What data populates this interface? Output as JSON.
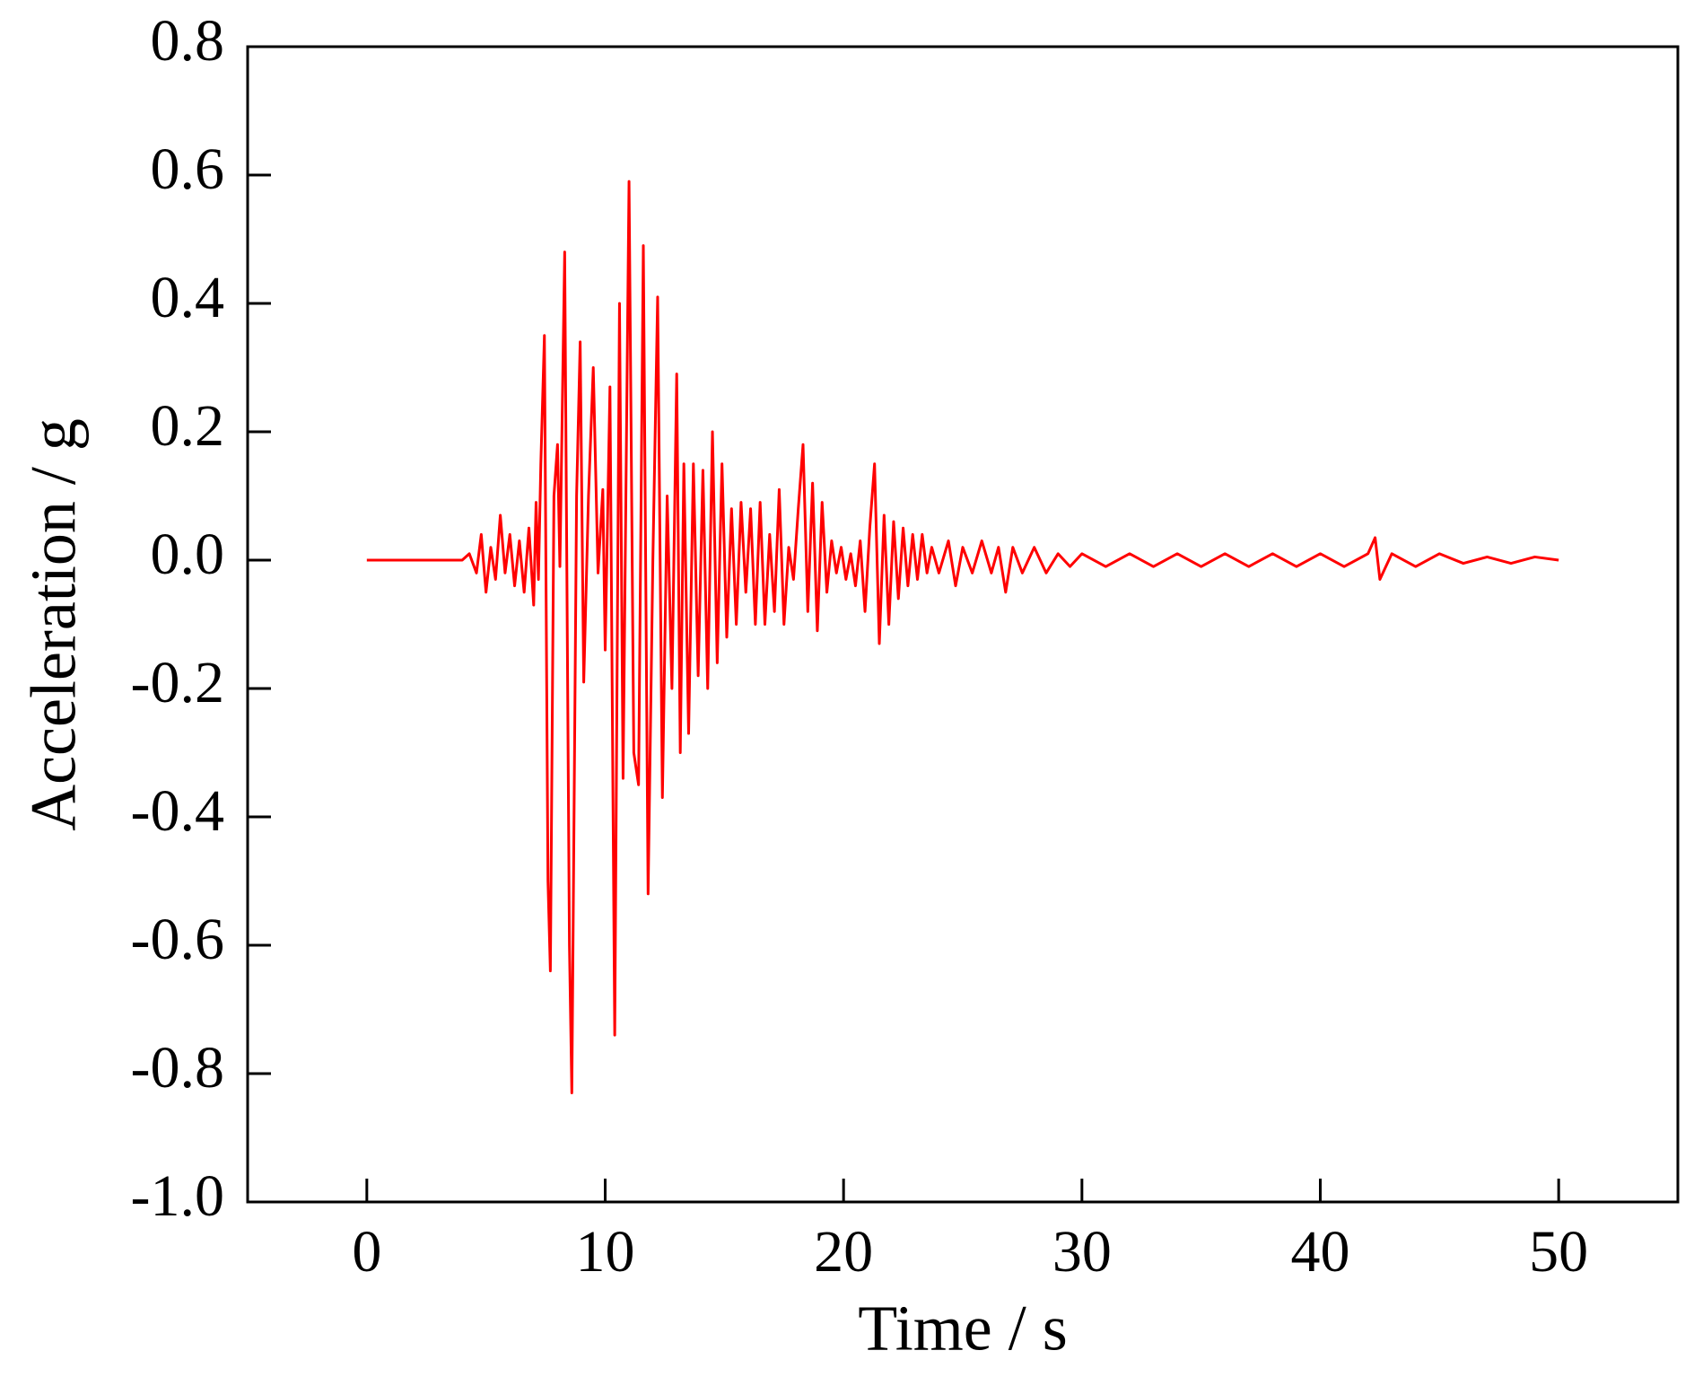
{
  "chart_data": {
    "type": "line",
    "x_label": "Time / s",
    "y_label": "Acceleration / g",
    "color": "#ff0000",
    "xlim": [
      -5,
      55
    ],
    "xticks": [
      0,
      10,
      20,
      30,
      40,
      50
    ],
    "ylim": [
      -1,
      0.8
    ],
    "yticks": [
      {
        "value": -1,
        "label": "-1.0"
      },
      -0.8,
      -0.6,
      -0.4,
      -0.2,
      {
        "value": 0,
        "label": "0.0"
      },
      0.2,
      0.4,
      0.6,
      0.8
    ],
    "x": [
      0,
      4,
      4.3,
      4.6,
      4.8,
      5.0,
      5.2,
      5.4,
      5.6,
      5.8,
      6.0,
      6.2,
      6.4,
      6.6,
      6.8,
      7.0,
      7.1,
      7.2,
      7.3,
      7.45,
      7.6,
      7.7,
      7.85,
      8.0,
      8.1,
      8.3,
      8.5,
      8.6,
      8.8,
      8.95,
      9.1,
      9.3,
      9.5,
      9.7,
      9.9,
      10.0,
      10.2,
      10.4,
      10.6,
      10.75,
      11.0,
      11.2,
      11.4,
      11.6,
      11.8,
      12.0,
      12.2,
      12.4,
      12.6,
      12.8,
      13.0,
      13.15,
      13.3,
      13.5,
      13.7,
      13.9,
      14.1,
      14.3,
      14.5,
      14.7,
      14.9,
      15.1,
      15.3,
      15.5,
      15.7,
      15.9,
      16.1,
      16.3,
      16.5,
      16.7,
      16.9,
      17.1,
      17.3,
      17.5,
      17.7,
      17.9,
      18.1,
      18.3,
      18.5,
      18.7,
      18.9,
      19.1,
      19.3,
      19.5,
      19.7,
      19.9,
      20.1,
      20.3,
      20.5,
      20.7,
      20.9,
      21.1,
      21.3,
      21.5,
      21.7,
      21.9,
      22.1,
      22.3,
      22.5,
      22.7,
      22.9,
      23.1,
      23.3,
      23.5,
      23.7,
      24,
      24.4,
      24.7,
      25,
      25.4,
      25.8,
      26.2,
      26.5,
      26.8,
      27.1,
      27.5,
      28,
      28.5,
      29,
      29.5,
      30,
      31,
      32,
      33,
      34,
      35,
      36,
      37,
      38,
      39,
      40,
      41,
      42,
      42.3,
      42.5,
      43,
      44,
      45,
      46,
      47,
      48,
      49,
      50
    ],
    "values": [
      0,
      0,
      0.01,
      -0.02,
      0.04,
      -0.05,
      0.02,
      -0.03,
      0.07,
      -0.02,
      0.04,
      -0.04,
      0.03,
      -0.05,
      0.05,
      -0.07,
      0.09,
      -0.03,
      0.15,
      0.35,
      -0.5,
      -0.64,
      0.1,
      0.18,
      -0.01,
      0.48,
      -0.6,
      -0.83,
      0.1,
      0.34,
      -0.19,
      0.1,
      0.3,
      -0.02,
      0.11,
      -0.14,
      0.27,
      -0.74,
      0.4,
      -0.34,
      0.59,
      -0.3,
      -0.35,
      0.49,
      -0.52,
      0.0,
      0.41,
      -0.37,
      0.1,
      -0.2,
      0.29,
      -0.3,
      0.15,
      -0.27,
      0.15,
      -0.18,
      0.14,
      -0.2,
      0.2,
      -0.16,
      0.15,
      -0.12,
      0.08,
      -0.1,
      0.09,
      -0.05,
      0.08,
      -0.1,
      0.09,
      -0.1,
      0.04,
      -0.08,
      0.11,
      -0.1,
      0.02,
      -0.03,
      0.08,
      0.18,
      -0.08,
      0.12,
      -0.11,
      0.09,
      -0.05,
      0.03,
      -0.02,
      0.02,
      -0.03,
      0.01,
      -0.04,
      0.03,
      -0.08,
      0.05,
      0.15,
      -0.13,
      0.07,
      -0.1,
      0.06,
      -0.06,
      0.05,
      -0.04,
      0.04,
      -0.03,
      0.04,
      -0.02,
      0.02,
      -0.02,
      0.03,
      -0.04,
      0.02,
      -0.02,
      0.03,
      -0.02,
      0.02,
      -0.05,
      0.02,
      -0.02,
      0.02,
      -0.02,
      0.01,
      -0.01,
      0.01,
      -0.01,
      0.01,
      -0.01,
      0.01,
      -0.01,
      0.01,
      -0.01,
      0.01,
      -0.01,
      0.01,
      -0.01,
      0.01,
      0.035,
      -0.03,
      0.01,
      -0.01,
      0.01,
      -0.005,
      0.005,
      -0.005,
      0.005,
      0
    ]
  }
}
